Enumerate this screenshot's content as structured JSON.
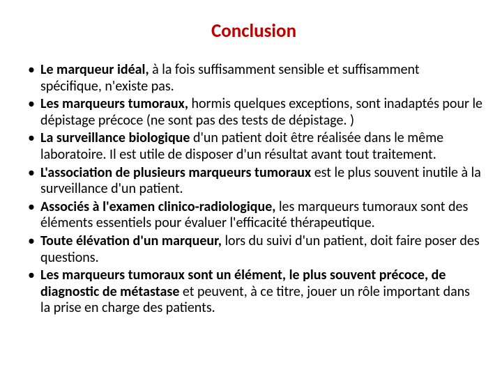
{
  "slide": {
    "title": "Conclusion",
    "title_color": "#c00000",
    "background_color": "#ffffff",
    "text_color": "#000000",
    "title_fontsize": 27,
    "body_fontsize": 20,
    "bullets": [
      {
        "bold": "Le marqueur idéal,",
        "rest": " à la fois suffisamment sensible et suffisamment spécifique, n'existe pas."
      },
      {
        "bold": "Les marqueurs tumoraux,",
        "rest": " hormis quelques exceptions, sont inadaptés pour le dépistage précoce (ne sont pas des tests de dépistage. )"
      },
      {
        "bold": "La surveillance biologique",
        "rest": " d'un patient doit être réalisée dans le même laboratoire. Il est utile de disposer d'un résultat avant tout traitement."
      },
      {
        "bold": "L'association de plusieurs marqueurs tumoraux",
        "rest": " est le plus souvent inutile à la surveillance d'un patient."
      },
      {
        "bold": "Associés à l'examen clinico-radiologique,",
        "rest": " les marqueurs tumoraux sont des éléments essentiels pour évaluer l'efficacité thérapeutique."
      },
      {
        "bold": "Toute élévation d'un marqueur,",
        "rest": " lors du suivi d'un patient, doit faire poser des questions."
      },
      {
        "bold": "Les marqueurs tumoraux sont un élément, le plus souvent précoce, de diagnostic de métastase",
        "rest": " et peuvent, à ce titre, jouer un rôle important dans la prise en charge des patients."
      }
    ]
  }
}
